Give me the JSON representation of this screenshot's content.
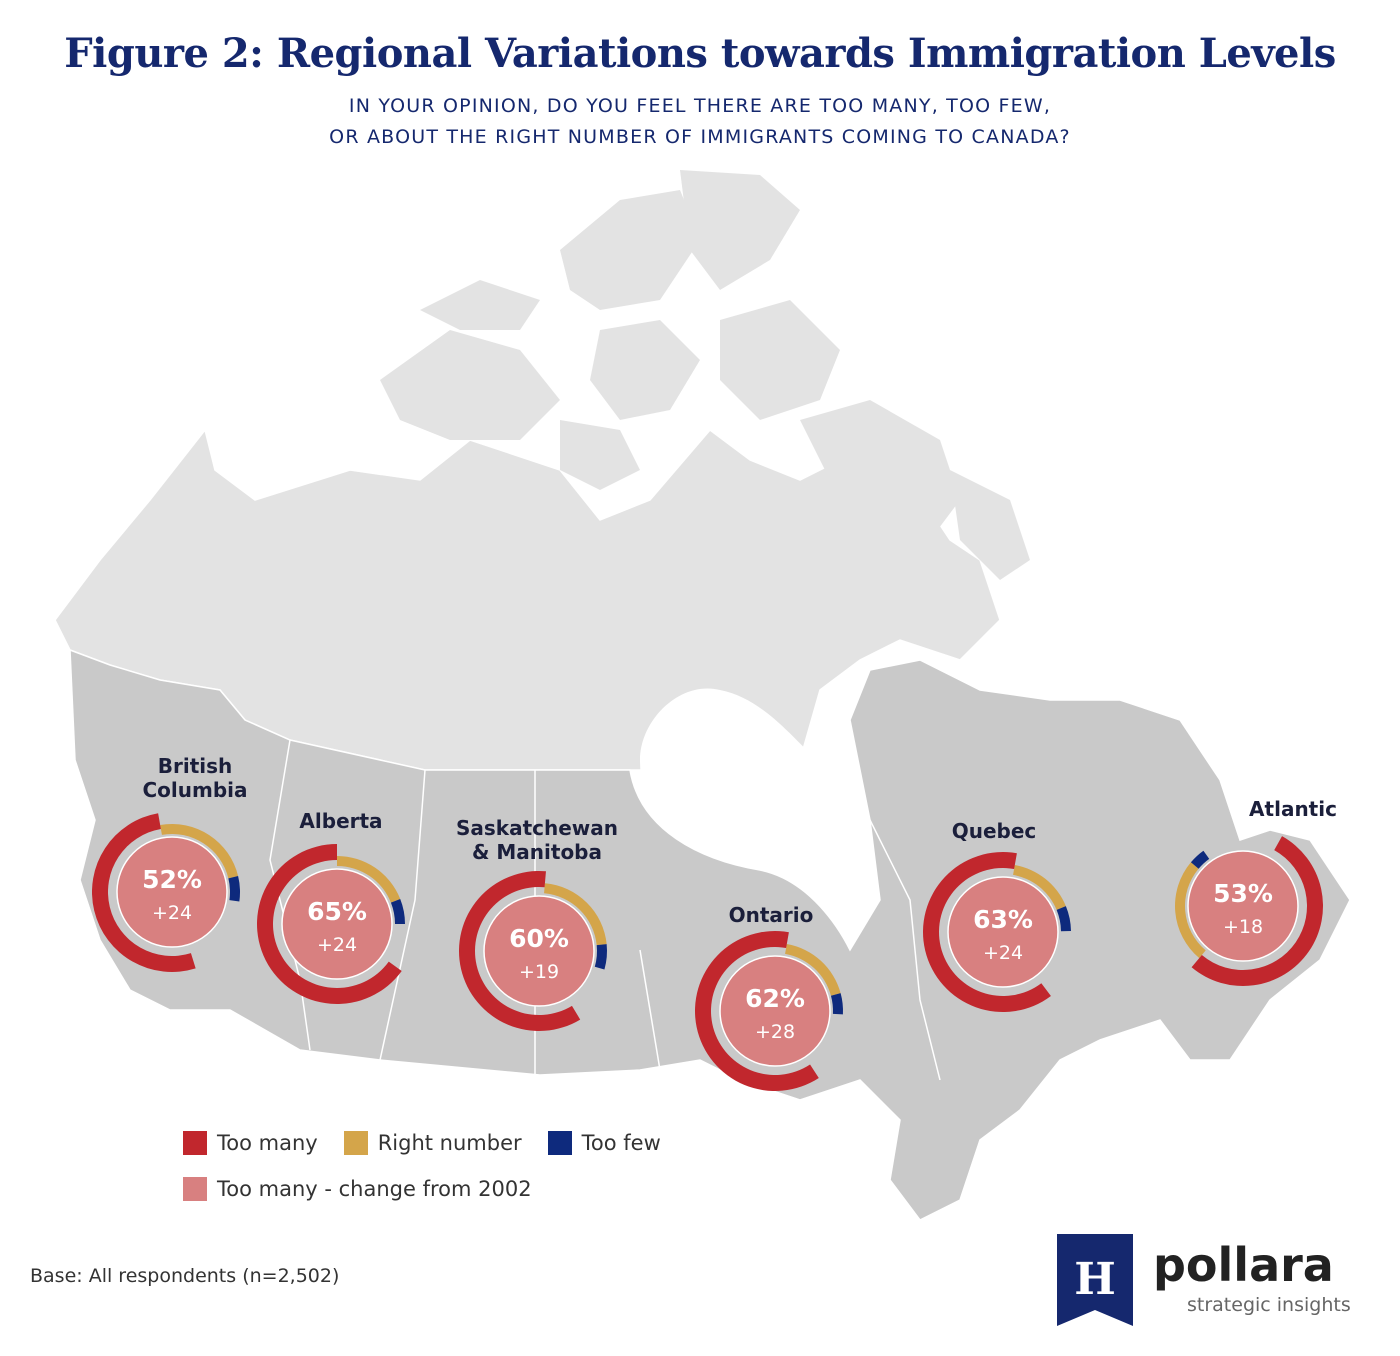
{
  "title": "Figure 2: Regional Variations towards Immigration Levels",
  "subtitle": {
    "line1": "IN YOUR OPINION, DO YOU FEEL THERE ARE TOO MANY, TOO FEW,",
    "line2": "OR ABOUT THE RIGHT NUMBER OF IMMIGRANTS COMING TO CANADA?"
  },
  "colors": {
    "too_many": "#c1272d",
    "right_number": "#d4a54a",
    "too_few": "#0e2a7d",
    "change": "#d88080",
    "map_land": "#c9c9c9",
    "map_north": "#e3e3e3"
  },
  "chart_data": {
    "type": "donut-map",
    "regions": [
      {
        "name": "British\nColumbia",
        "too_many": 52,
        "right_number": 24,
        "too_few": 6,
        "label": "52%",
        "change": "+24"
      },
      {
        "name": "Alberta",
        "too_many": 65,
        "right_number": 19,
        "too_few": 6,
        "label": "65%",
        "change": "+24"
      },
      {
        "name": "Saskatchewan\n& Manitoba",
        "too_many": 60,
        "right_number": 22,
        "too_few": 6,
        "label": "60%",
        "change": "+19"
      },
      {
        "name": "Ontario",
        "too_many": 62,
        "right_number": 18,
        "too_few": 5,
        "label": "62%",
        "change": "+28"
      },
      {
        "name": "Quebec",
        "too_many": 63,
        "right_number": 16,
        "too_few": 6,
        "label": "63%",
        "change": "+24"
      },
      {
        "name": "Atlantic",
        "too_many": 53,
        "right_number": 25,
        "too_few": 4,
        "label": "53%",
        "change": "+18"
      }
    ]
  },
  "legend": {
    "too_many": "Too many",
    "right_number": "Right number",
    "too_few": "Too few",
    "change": "Too many - change from 2002"
  },
  "base_note": "Base: All respondents (n=2,502)",
  "logo": {
    "mark": "H",
    "word": "pollara",
    "tagline": "strategic insights"
  }
}
